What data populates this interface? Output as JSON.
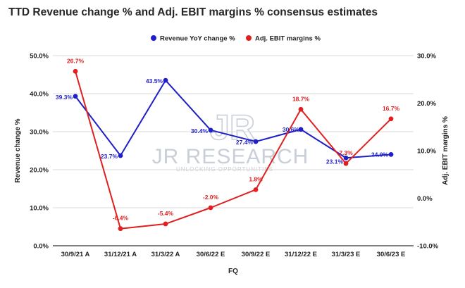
{
  "chart_data": {
    "type": "line",
    "title": "TTD Revenue change % and Adj. EBIT margins % consensus estimates",
    "xlabel": "FQ",
    "ylabel": "Revenue change %",
    "y2label": "Adj. EBIT margins %",
    "categories": [
      "30/9/21 A",
      "31/12/21 A",
      "31/3/22 A",
      "30/6/22 E",
      "30/9/22 E",
      "31/12/22 E",
      "31/3/23 E",
      "30/6/23 E"
    ],
    "ylim": [
      0,
      50
    ],
    "yticks": [
      "0.0%",
      "10.0%",
      "20.0%",
      "30.0%",
      "40.0%",
      "50.0%"
    ],
    "y2lim": [
      -10,
      30
    ],
    "y2ticks": [
      "-10.0%",
      "0.0%",
      "10.0%",
      "20.0%",
      "30.0%"
    ],
    "legend_position": "top",
    "series": [
      {
        "name": "Revenue YoY change %",
        "axis": "left",
        "color": "#1f1fc8",
        "values": [
          39.3,
          23.7,
          43.5,
          30.4,
          27.4,
          30.6,
          23.1,
          24.0
        ],
        "labels": [
          "39.3%",
          "23.7%",
          "43.5%",
          "30.4%",
          "27.4%",
          "30.6%",
          "23.1%",
          "24.0%"
        ]
      },
      {
        "name": "Adj. EBIT margins %",
        "axis": "right",
        "color": "#e02020",
        "values": [
          26.7,
          -6.4,
          -5.4,
          -2.0,
          1.8,
          18.7,
          7.3,
          16.7
        ],
        "labels": [
          "26.7%",
          "-6.4%",
          "-5.4%",
          "-2.0%",
          "1.8%",
          "18.7%",
          "7.3%",
          "16.7%"
        ]
      }
    ],
    "watermark": {
      "name": "JR RESEARCH",
      "tagline": "UNLOCKING OPPORTUNITIES",
      "logo_text": "JR"
    }
  }
}
